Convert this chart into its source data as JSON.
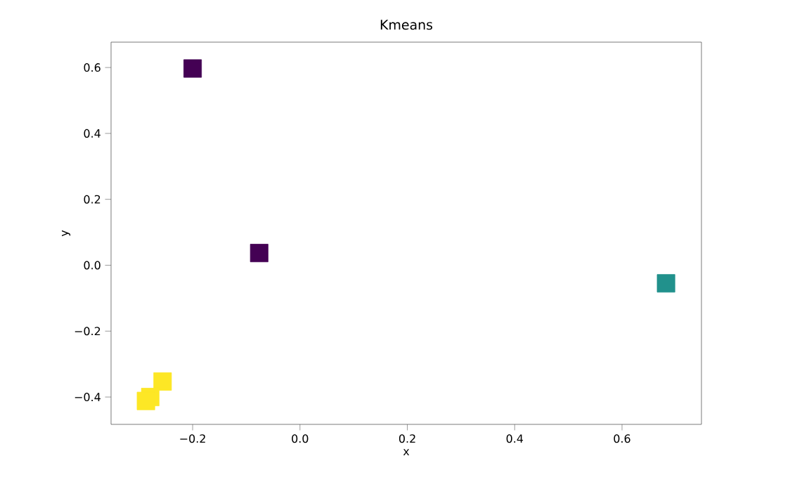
{
  "chart_data": {
    "type": "scatter",
    "title": "Kmeans",
    "xlabel": "x",
    "ylabel": "y",
    "marker": "square",
    "xlim": [
      -0.352,
      0.748
    ],
    "ylim": [
      -0.483,
      0.677
    ],
    "xticks": [
      {
        "value": -0.2,
        "label": "−0.2"
      },
      {
        "value": 0.0,
        "label": "0.0"
      },
      {
        "value": 0.2,
        "label": "0.2"
      },
      {
        "value": 0.4,
        "label": "0.4"
      },
      {
        "value": 0.6,
        "label": "0.6"
      }
    ],
    "yticks": [
      {
        "value": -0.4,
        "label": "−0.4"
      },
      {
        "value": -0.2,
        "label": "−0.2"
      },
      {
        "value": 0.0,
        "label": "0.0"
      },
      {
        "value": 0.2,
        "label": "0.2"
      },
      {
        "value": 0.4,
        "label": "0.4"
      },
      {
        "value": 0.6,
        "label": "0.6"
      }
    ],
    "series": [
      {
        "color": "#440154",
        "x": [
          -0.2,
          -0.076
        ],
        "values": [
          0.597,
          0.037
        ]
      },
      {
        "color": "#21918c",
        "x": [
          0.682
        ],
        "values": [
          -0.055
        ]
      },
      {
        "color": "#fde725",
        "x": [
          -0.256,
          -0.279,
          -0.287
        ],
        "values": [
          -0.353,
          -0.4,
          -0.412
        ]
      }
    ]
  }
}
